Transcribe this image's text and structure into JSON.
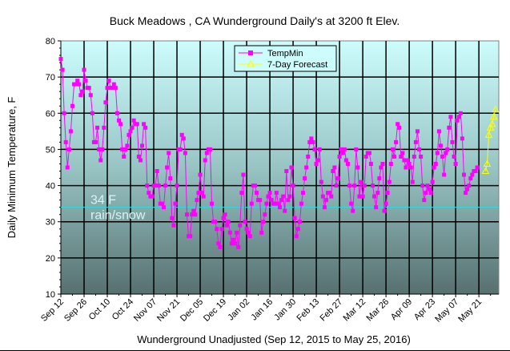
{
  "chart_data": {
    "type": "line",
    "title": "Buck Meadows , CA Wunderground Daily's at 3200 ft Elev.",
    "xlabel": "Wunderground Unadjusted (Sep 12, 2015 to May 25, 2016)",
    "ylabel": "Daily Minimum Temperature, F",
    "ylim": [
      10,
      80
    ],
    "yticks": [
      "10",
      "20",
      "30",
      "40",
      "50",
      "60",
      "70",
      "80"
    ],
    "xlim_days": [
      0,
      264
    ],
    "xtick_step_days": 14,
    "xticks": [
      "Sep 12",
      "Sep 26",
      "Oct 10",
      "Oct 24",
      "Nov 07",
      "Nov 21",
      "Dec 05",
      "Dec 19",
      "Jan 02",
      "Jan 16",
      "Jan 30",
      "Feb 13",
      "Feb 27",
      "Mar 12",
      "Mar 26",
      "Apr 09",
      "Apr 23",
      "May 07",
      "May 21"
    ],
    "grid": true,
    "legend_position": "top-center",
    "annotation": {
      "line1": "34 F",
      "line2": "rain/snow",
      "value": 34
    },
    "series": [
      {
        "name": "TempMin",
        "color": "#ff00ff",
        "marker": "square",
        "start_day": 0,
        "values": [
          75,
          72,
          60,
          52,
          45,
          50,
          55,
          62,
          68,
          68,
          69,
          68,
          65,
          66,
          72,
          69,
          67,
          67,
          65,
          60,
          52,
          52,
          56,
          50,
          47,
          50,
          56,
          63,
          67,
          69,
          67,
          67,
          68,
          67,
          60,
          58,
          57,
          50,
          48,
          50,
          51,
          54,
          55,
          56,
          58,
          57,
          57,
          48,
          47,
          51,
          57,
          56,
          40,
          38,
          37,
          37,
          40,
          40,
          44,
          40,
          35,
          35,
          34,
          40,
          45,
          49,
          42,
          31,
          29,
          35,
          40,
          50,
          50,
          54,
          53,
          49,
          32,
          26,
          26,
          32,
          33,
          32,
          36,
          38,
          43,
          38,
          37,
          47,
          49,
          50,
          50,
          35,
          30,
          30,
          28,
          24,
          23,
          28,
          31,
          32,
          29,
          30,
          27,
          24,
          25,
          24,
          27,
          23,
          29,
          38,
          43,
          30,
          28,
          27,
          26,
          35,
          40,
          40,
          38,
          36,
          36,
          27,
          30,
          32,
          35,
          37,
          38,
          36,
          35,
          35,
          38,
          35,
          34,
          36,
          37,
          33,
          44,
          36,
          37,
          45,
          40,
          31,
          26,
          28,
          30,
          35,
          38,
          42,
          45,
          48,
          52,
          53,
          52,
          50,
          46,
          47,
          50,
          41,
          37,
          34,
          36,
          38,
          38,
          37,
          44,
          45,
          40,
          42,
          48,
          50,
          49,
          50,
          47,
          46,
          40,
          35,
          33,
          40,
          50,
          45,
          37,
          41,
          37,
          40,
          48,
          49,
          49,
          46,
          40,
          37,
          34,
          38,
          42,
          45,
          46,
          33,
          35,
          38,
          41,
          46,
          50,
          48,
          52,
          57,
          56,
          48,
          49,
          47,
          45,
          47,
          46,
          45,
          41,
          48,
          52,
          55,
          50,
          48,
          40,
          36,
          38,
          40,
          39,
          38,
          41,
          45,
          46,
          49,
          55,
          51,
          48,
          43,
          49,
          50,
          56,
          59,
          52,
          48,
          46,
          58,
          59,
          60,
          53,
          43,
          38,
          39,
          40,
          42,
          43,
          44,
          44,
          45
        ]
      },
      {
        "name": "7-Day Forecast",
        "color": "#ffff00",
        "marker": "triangle",
        "start_day": 256,
        "values": [
          44,
          46,
          54,
          56,
          57,
          59,
          61
        ]
      }
    ]
  }
}
